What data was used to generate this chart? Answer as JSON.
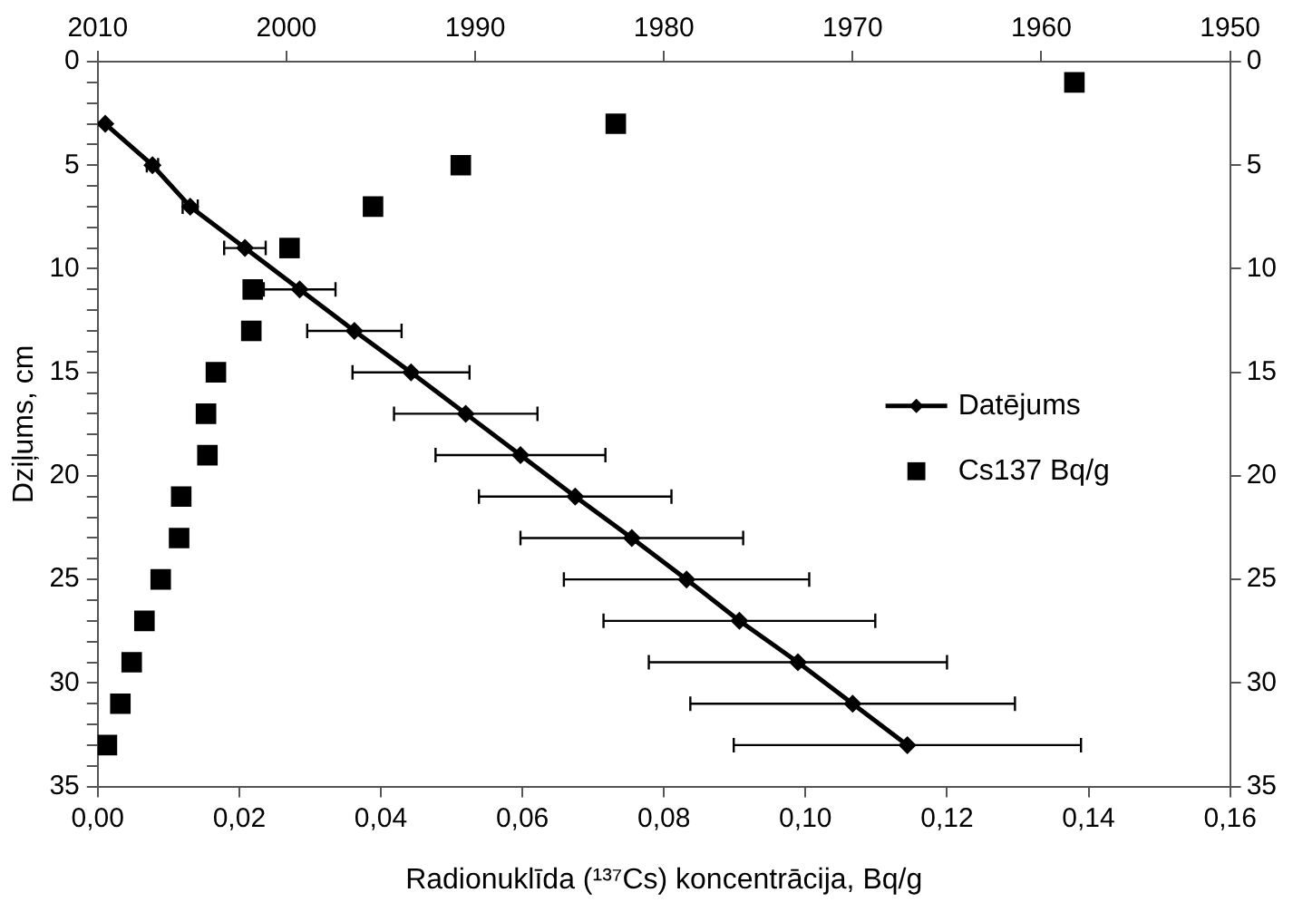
{
  "chart_data": {
    "type": "scatter",
    "xlabel": "Radionuklīda (¹³⁷Cs) koncentrācija, Bq/g",
    "ylabel": "Dziļums, cm",
    "xlim": [
      0,
      0.16
    ],
    "xticks": [
      {
        "value": 0,
        "label": "0,00"
      },
      {
        "value": 0.02,
        "label": "0,02"
      },
      {
        "value": 0.04,
        "label": "0,04"
      },
      {
        "value": 0.06,
        "label": "0,06"
      },
      {
        "value": 0.08,
        "label": "0,08"
      },
      {
        "value": 0.1,
        "label": "0,10"
      },
      {
        "value": 0.12,
        "label": "0,12"
      },
      {
        "value": 0.14,
        "label": "0,14"
      },
      {
        "value": 0.16,
        "label": "0,16"
      }
    ],
    "x2lim": [
      2010,
      1950
    ],
    "x2ticks": [
      2010,
      2000,
      1990,
      1980,
      1970,
      1960,
      1950
    ],
    "ylim": [
      35,
      0
    ],
    "yticks": [
      0,
      {
        "value": 1,
        "label": null
      },
      {
        "value": 2,
        "label": null
      },
      {
        "value": 3,
        "label": null
      },
      {
        "value": 4,
        "label": null
      },
      5,
      {
        "value": 6,
        "label": null
      },
      {
        "value": 7,
        "label": null
      },
      {
        "value": 8,
        "label": null
      },
      {
        "value": 9,
        "label": null
      },
      10,
      {
        "value": 11,
        "label": null
      },
      {
        "value": 12,
        "label": null
      },
      {
        "value": 13,
        "label": null
      },
      {
        "value": 14,
        "label": null
      },
      15,
      {
        "value": 16,
        "label": null
      },
      {
        "value": 17,
        "label": null
      },
      {
        "value": 18,
        "label": null
      },
      {
        "value": 19,
        "label": null
      },
      20,
      {
        "value": 21,
        "label": null
      },
      {
        "value": 22,
        "label": null
      },
      {
        "value": 23,
        "label": null
      },
      {
        "value": 24,
        "label": null
      },
      25,
      {
        "value": 26,
        "label": null
      },
      {
        "value": 27,
        "label": null
      },
      {
        "value": 28,
        "label": null
      },
      {
        "value": 29,
        "label": null
      },
      30,
      {
        "value": 31,
        "label": null
      },
      {
        "value": 32,
        "label": null
      },
      {
        "value": 33,
        "label": null
      },
      {
        "value": 34,
        "label": null
      },
      35
    ],
    "y2lim": [
      35,
      0
    ],
    "y2ticks": [
      0,
      5,
      10,
      15,
      20,
      25,
      30,
      35
    ],
    "grid": false,
    "legend": "right",
    "series": [
      {
        "name": "Datējums",
        "type": "line",
        "axis": "x2",
        "marker": "diamond",
        "line_style": "solid",
        "color": "#000000",
        "x": [
          2009.6,
          2007.1,
          2005.1,
          2002.2,
          1999.3,
          1996.4,
          1993.4,
          1990.5,
          1987.6,
          1984.7,
          1981.7,
          1978.8,
          1976.0,
          1972.9,
          1970.0,
          1967.1
        ],
        "values": [
          3,
          5,
          7,
          9,
          11,
          13,
          15,
          17,
          19,
          21,
          23,
          25,
          27,
          29,
          31,
          33
        ],
        "xerrors": [
          null,
          0.3,
          0.4,
          1.1,
          1.9,
          2.5,
          3.1,
          3.8,
          4.5,
          5.1,
          5.9,
          6.5,
          7.2,
          7.9,
          8.6,
          9.2
        ]
      },
      {
        "name": "Cs137 Bq/g",
        "type": "scatter",
        "marker": "square",
        "color": "#000000",
        "x": [
          0.138,
          0.0732,
          0.0513,
          0.0389,
          0.0271,
          0.0219,
          0.0217,
          0.0167,
          0.0153,
          0.0155,
          0.0118,
          0.0115,
          0.0089,
          0.0066,
          0.0048,
          0.0032,
          0.0013
        ],
        "values": [
          1,
          3,
          5,
          7,
          9,
          11,
          13,
          15,
          17,
          19,
          21,
          23,
          25,
          27,
          29,
          31,
          33
        ]
      }
    ]
  }
}
